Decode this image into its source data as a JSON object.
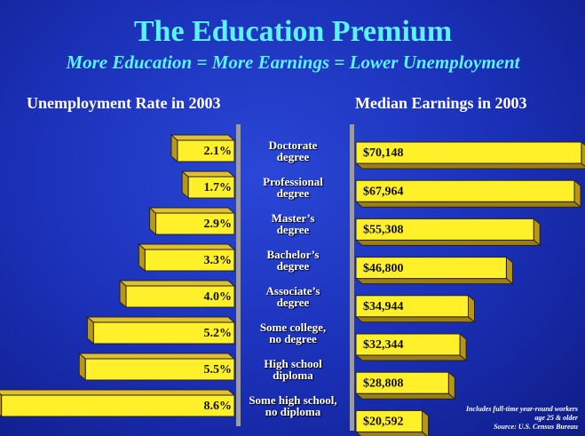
{
  "header": {
    "title": "The Education Premium",
    "subtitle": "More Education = More Earnings = Lower Unemployment"
  },
  "chart_data": [
    {
      "type": "bar",
      "orientation": "horizontal",
      "direction": "left",
      "title": "Unemployment Rate in 2003",
      "color": "#fff02a",
      "categories": [
        "Doctorate\ndegree",
        "Professional\ndegree",
        "Master’s\ndegree",
        "Bachelor’s\ndegree",
        "Associate’s\ndegree",
        "Some college,\nno degree",
        "High school\ndiploma",
        "Some high school,\nno diploma"
      ],
      "values": [
        2.1,
        1.7,
        2.9,
        3.3,
        4.0,
        5.2,
        5.5,
        8.6
      ],
      "value_labels": [
        "2.1%",
        "1.7%",
        "2.9%",
        "3.3%",
        "4.0%",
        "5.2%",
        "5.5%",
        "8.6%"
      ]
    },
    {
      "type": "bar",
      "orientation": "horizontal",
      "direction": "right",
      "title": "Median Earnings in 2003",
      "color": "#fff02a",
      "values": [
        70148,
        67964,
        55308,
        46800,
        34944,
        32344,
        28808,
        20592
      ],
      "value_labels": [
        "$70,148",
        "$67,964",
        "$55,308",
        "$46,800",
        "$34,944",
        "$32,344",
        "$28,808",
        "$20,592"
      ]
    }
  ],
  "footnote": [
    "Includes full-time year-round workers",
    "age 25 & older",
    "Source: U.S. Census Bureau"
  ]
}
